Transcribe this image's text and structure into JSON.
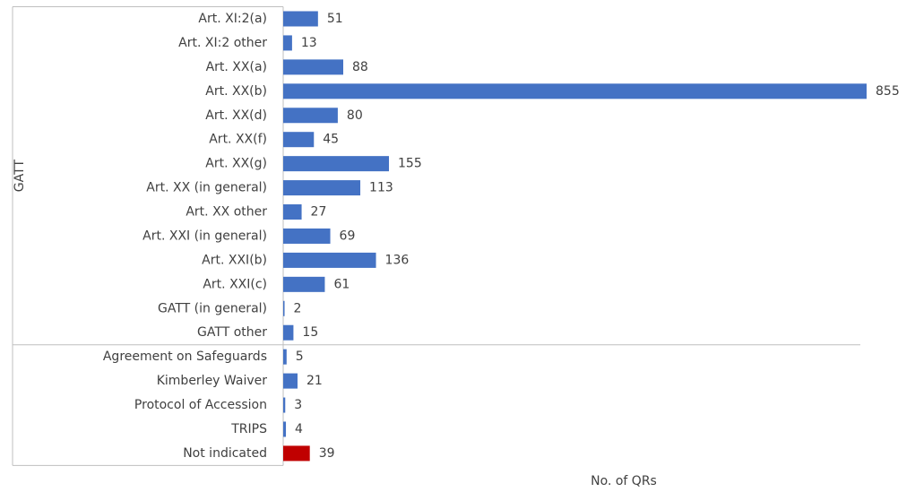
{
  "chart_data": {
    "type": "bar",
    "orientation": "horizontal",
    "xlabel": "No. of QRs",
    "xlim": [
      0,
      855
    ],
    "groups": [
      {
        "name": "GATT",
        "categories": [
          "Art. XI:2(a)",
          "Art. XI:2 other",
          "Art. XX(a)",
          "Art. XX(b)",
          "Art. XX(d)",
          "Art. XX(f)",
          "Art. XX(g)",
          "Art. XX (in general)",
          "Art. XX other",
          "Art. XXI (in general)",
          "Art. XXI(b)",
          "Art. XXI(c)",
          "GATT (in general)",
          "GATT other"
        ],
        "values": [
          51,
          13,
          88,
          855,
          80,
          45,
          155,
          113,
          27,
          69,
          136,
          61,
          2,
          15
        ],
        "colors": [
          "#4472c4",
          "#4472c4",
          "#4472c4",
          "#4472c4",
          "#4472c4",
          "#4472c4",
          "#4472c4",
          "#4472c4",
          "#4472c4",
          "#4472c4",
          "#4472c4",
          "#4472c4",
          "#4472c4",
          "#4472c4"
        ]
      },
      {
        "name": null,
        "categories": [
          "Agreement on Safeguards",
          "Kimberley Waiver",
          "Protocol of Accession",
          "TRIPS",
          "Not indicated"
        ],
        "values": [
          5,
          21,
          3,
          4,
          39
        ],
        "colors": [
          "#4472c4",
          "#4472c4",
          "#4472c4",
          "#4472c4",
          "#c00000"
        ]
      }
    ]
  }
}
